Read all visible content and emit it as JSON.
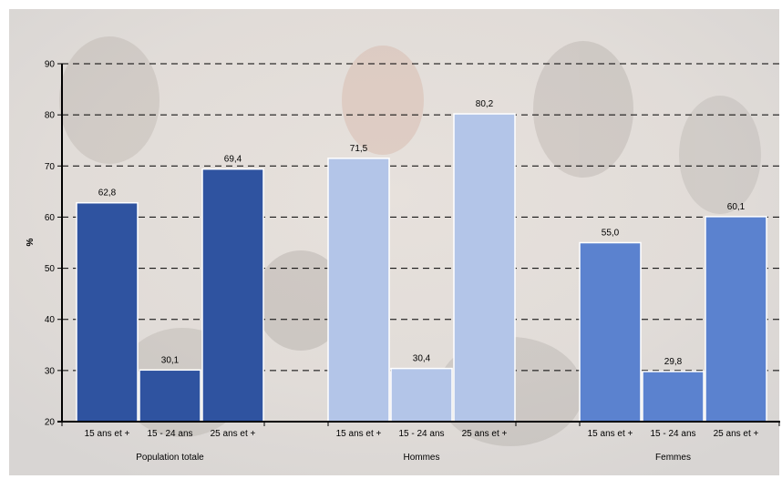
{
  "chart_data": {
    "type": "bar",
    "ylabel": "%",
    "ylim": [
      20,
      90
    ],
    "yticks": [
      20,
      30,
      40,
      50,
      60,
      70,
      80,
      90
    ],
    "grid": true,
    "groups": [
      {
        "name": "Population totale",
        "color": "#2f53a0",
        "bars": [
          {
            "label": "15 ans et +",
            "value": 62.8,
            "value_label": "62,8"
          },
          {
            "label": "15 - 24 ans",
            "value": 30.1,
            "value_label": "30,1"
          },
          {
            "label": "25 ans et +",
            "value": 69.4,
            "value_label": "69,4"
          }
        ]
      },
      {
        "name": "Hommes",
        "color": "#b3c5e8",
        "bars": [
          {
            "label": "15 ans et +",
            "value": 71.5,
            "value_label": "71,5"
          },
          {
            "label": "15 - 24 ans",
            "value": 30.4,
            "value_label": "30,4"
          },
          {
            "label": "25 ans et +",
            "value": 80.2,
            "value_label": "80,2"
          }
        ]
      },
      {
        "name": "Femmes",
        "color": "#5b82cf",
        "bars": [
          {
            "label": "15 ans et +",
            "value": 55.0,
            "value_label": "55,0"
          },
          {
            "label": "15 - 24 ans",
            "value": 29.8,
            "value_label": "29,8"
          },
          {
            "label": "25 ans et +",
            "value": 60.1,
            "value_label": "60,1"
          }
        ]
      }
    ]
  }
}
